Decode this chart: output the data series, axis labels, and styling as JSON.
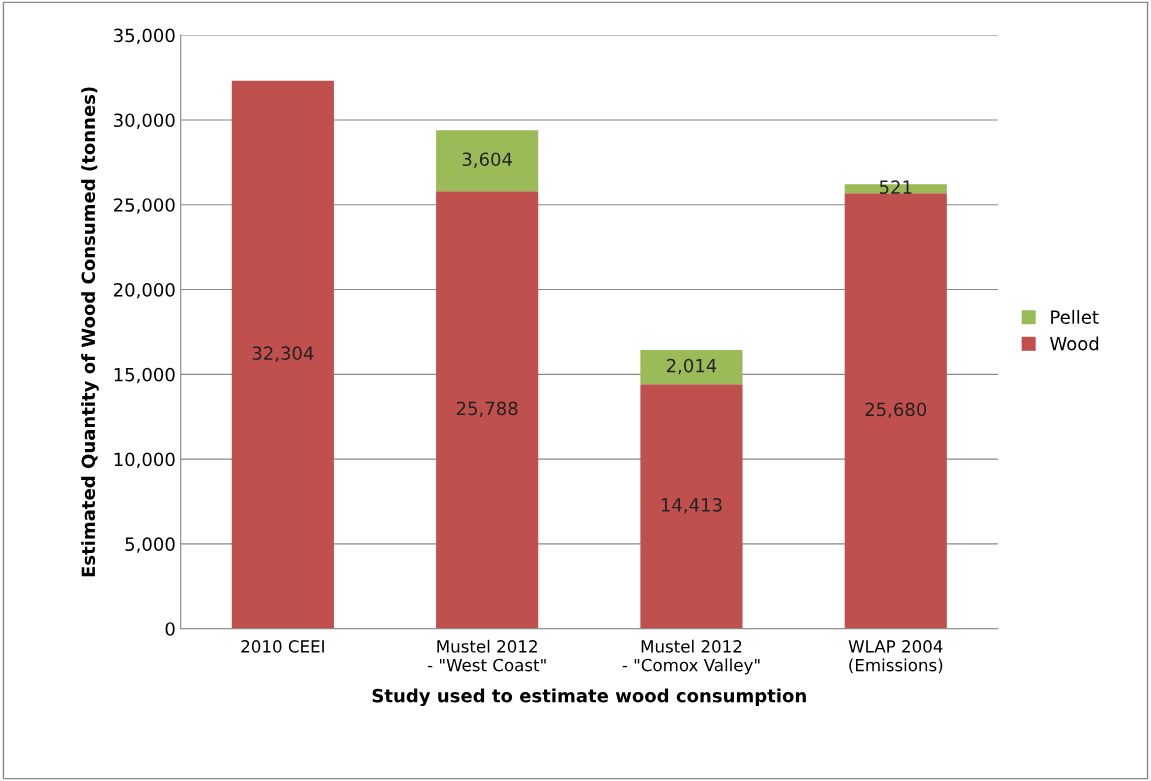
{
  "chart_data": {
    "type": "bar",
    "stacked": true,
    "xlabel": "Study used to estimate wood consumption",
    "ylabel": "Estimated Quantity of Wood Consumed (tonnes)",
    "categories": [
      "2010 CEEI",
      "Mustel 2012\n- \"West Coast\"",
      "Mustel 2012\n- \"Comox Valley\"",
      "WLAP 2004\n(Emissions)"
    ],
    "series": [
      {
        "name": "Wood",
        "color": "#c0504d",
        "values": [
          32304,
          25788,
          14413,
          25680
        ],
        "value_labels": [
          "32,304",
          "25,788",
          "14,413",
          "25,680"
        ]
      },
      {
        "name": "Pellet",
        "color": "#9bbb59",
        "values": [
          null,
          3604,
          2014,
          521
        ],
        "value_labels": [
          null,
          "3,604",
          "2,014",
          "521"
        ]
      }
    ],
    "ylim": [
      0,
      35000
    ],
    "yticks": [
      {
        "value": 0,
        "label": "0"
      },
      {
        "value": 5000,
        "label": "5,000"
      },
      {
        "value": 10000,
        "label": "10,000"
      },
      {
        "value": 15000,
        "label": "15,000"
      },
      {
        "value": 20000,
        "label": "20,000"
      },
      {
        "value": 25000,
        "label": "25,000"
      },
      {
        "value": 30000,
        "label": "30,000"
      },
      {
        "value": 35000,
        "label": "35,000"
      }
    ],
    "grid": "y",
    "legend": "right"
  }
}
